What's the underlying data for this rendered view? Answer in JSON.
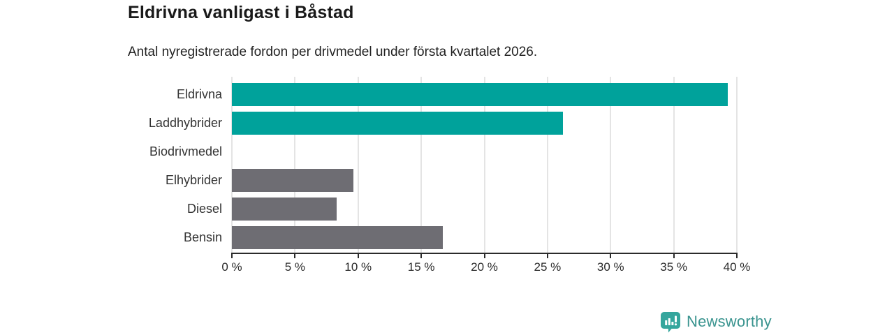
{
  "page": {
    "background": "#ffffff"
  },
  "chart_data": {
    "type": "bar",
    "orientation": "horizontal",
    "title": "Eldrivna vanligast i Båstad",
    "subtitle": "Antal nyregistrerade fordon per drivmedel under första kvartalet 2026.",
    "categories": [
      "Eldrivna",
      "Laddhybrider",
      "Biodrivmedel",
      "Elhybrider",
      "Diesel",
      "Bensin"
    ],
    "values": [
      39.3,
      26.2,
      0,
      9.6,
      8.3,
      16.7
    ],
    "unit": "%",
    "bar_color_keys": [
      "teal",
      "teal",
      "teal",
      "gray",
      "gray",
      "gray"
    ],
    "xlim": [
      0,
      40
    ],
    "x_ticks": [
      0,
      5,
      10,
      15,
      20,
      25,
      30,
      35,
      40
    ],
    "x_tick_label_suffix": " %",
    "grid": "vertical",
    "legend": "none"
  },
  "palette": {
    "teal": "#00a29b",
    "gray": "#6e6d73",
    "grid_line": "#e4e4e4",
    "axis_line": "#2b2b2b",
    "title_text": "#1a1a1a",
    "label_text": "#333333"
  },
  "branding": {
    "logo_text": "Newsworthy",
    "logo_icon": "bar-chart-speech-bubble-icon",
    "logo_text_color": "#3a948f",
    "logo_icon_color": "#35a69d"
  }
}
